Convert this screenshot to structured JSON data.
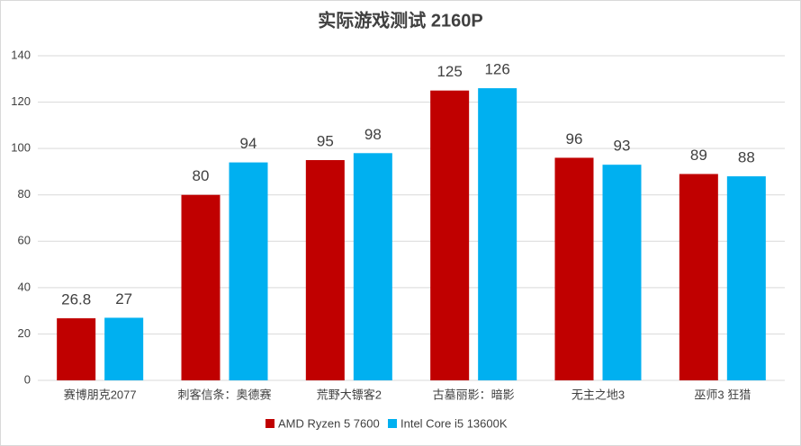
{
  "chart_data": {
    "type": "bar",
    "title": "实际游戏测试 2160P",
    "categories": [
      "赛博朋克2077",
      "刺客信条：奥德赛",
      "荒野大镖客2",
      "古墓丽影：暗影",
      "无主之地3",
      "巫师3 狂猎"
    ],
    "series": [
      {
        "name": "AMD Ryzen 5 7600",
        "color": "#c00000",
        "values": [
          26.8,
          80,
          95,
          125,
          96,
          89
        ]
      },
      {
        "name": "Intel Core i5 13600K",
        "color": "#00b0f0",
        "values": [
          27,
          94,
          98,
          126,
          93,
          88
        ]
      }
    ],
    "ylim": [
      0,
      140
    ],
    "yticks": [
      0,
      20,
      40,
      60,
      80,
      100,
      120,
      140
    ],
    "grid": true,
    "legend": "bottom"
  }
}
